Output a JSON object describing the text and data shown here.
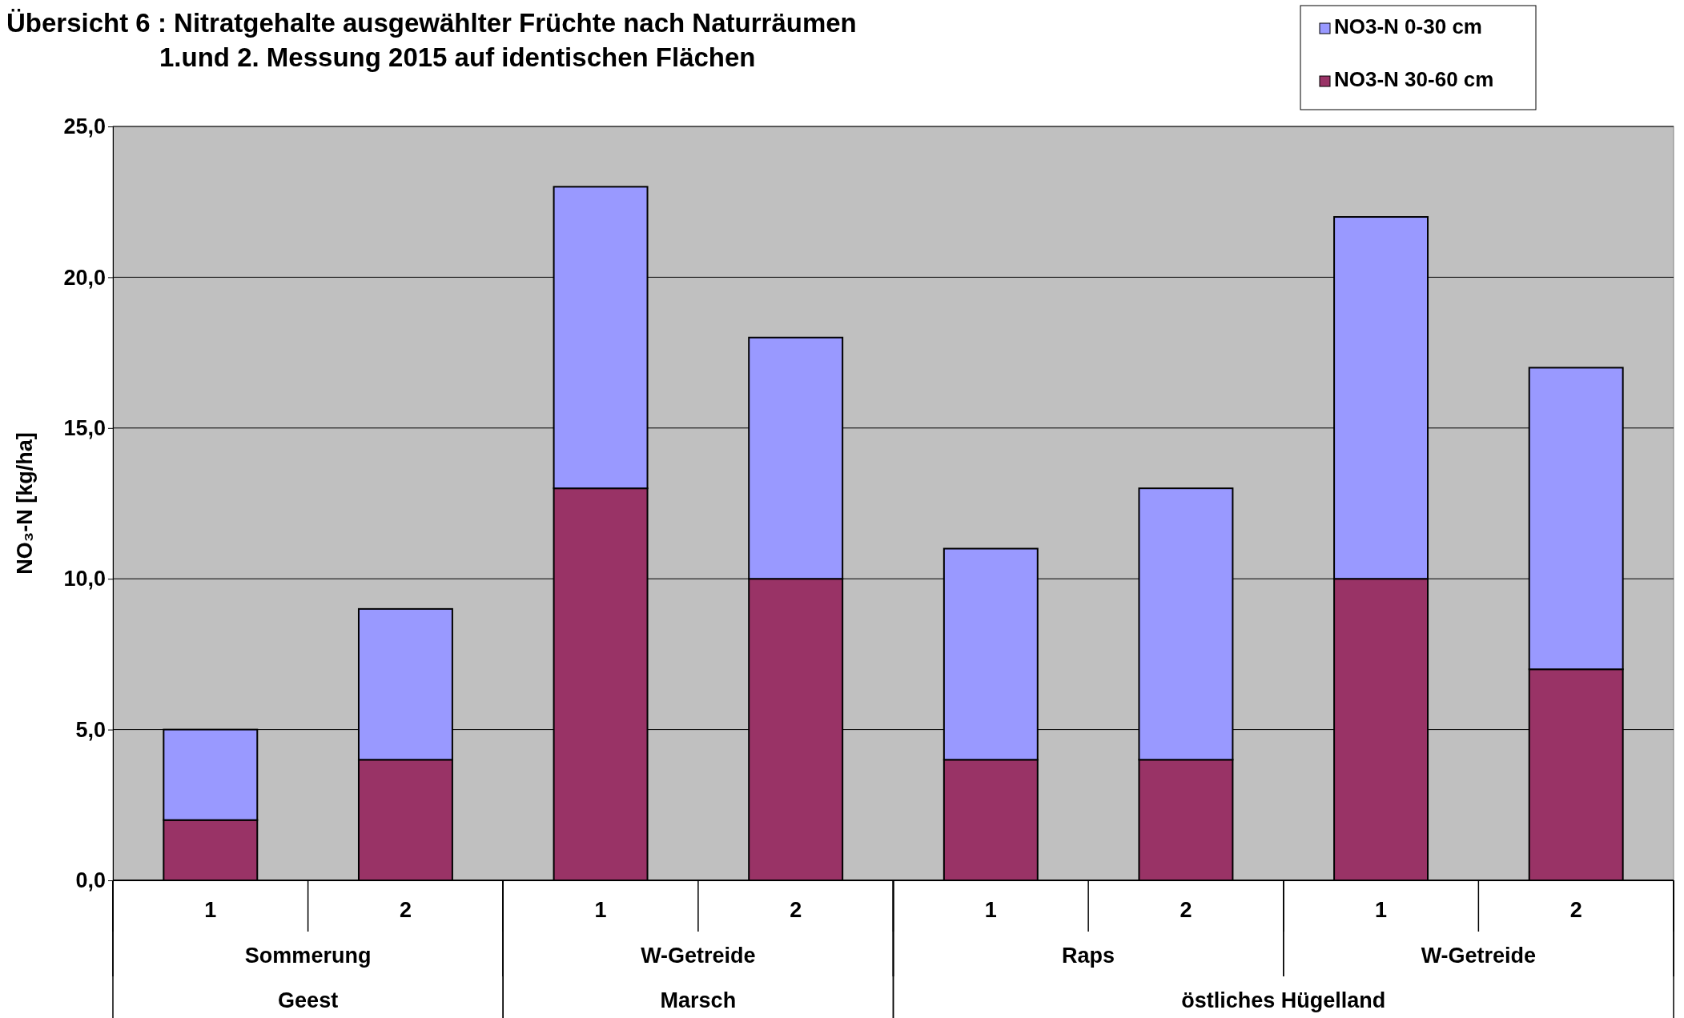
{
  "chart_data": {
    "type": "bar",
    "title": "Übersicht 6 :  Nitratgehalte ausgewählter Früchte nach Naturräumen",
    "subtitle": "1.und 2. Messung 2015 auf identischen Flächen",
    "ylabel": "NO₃-N [kg/ha]",
    "categories": [
      "1",
      "2",
      "1",
      "2",
      "1",
      "2",
      "1",
      "2"
    ],
    "annotations": [
      "Sommerung",
      "W-Getreide",
      "Raps",
      "W-Getreide",
      "Geest",
      "Marsch",
      "östliches Hügelland"
    ],
    "stacked": true,
    "series": [
      {
        "name": "NO3-N 30-60 cm",
        "color": "#993366",
        "values": [
          2,
          4,
          13,
          10,
          4,
          4,
          10,
          7
        ]
      },
      {
        "name": "NO3-N  0-30 cm",
        "color": "#9999ff",
        "values": [
          3,
          5,
          10,
          8,
          7,
          9,
          12,
          10
        ]
      }
    ],
    "ylim": [
      0,
      25
    ],
    "yticks": [
      {
        "value": 0,
        "label": "0,0"
      },
      {
        "value": 5,
        "label": "5,0"
      },
      {
        "value": 10,
        "label": "10,0"
      },
      {
        "value": 15,
        "label": "15,0"
      },
      {
        "value": 20,
        "label": "20,0"
      },
      {
        "value": 25,
        "label": "25,0"
      }
    ],
    "grid": "y",
    "legend": "top right"
  }
}
